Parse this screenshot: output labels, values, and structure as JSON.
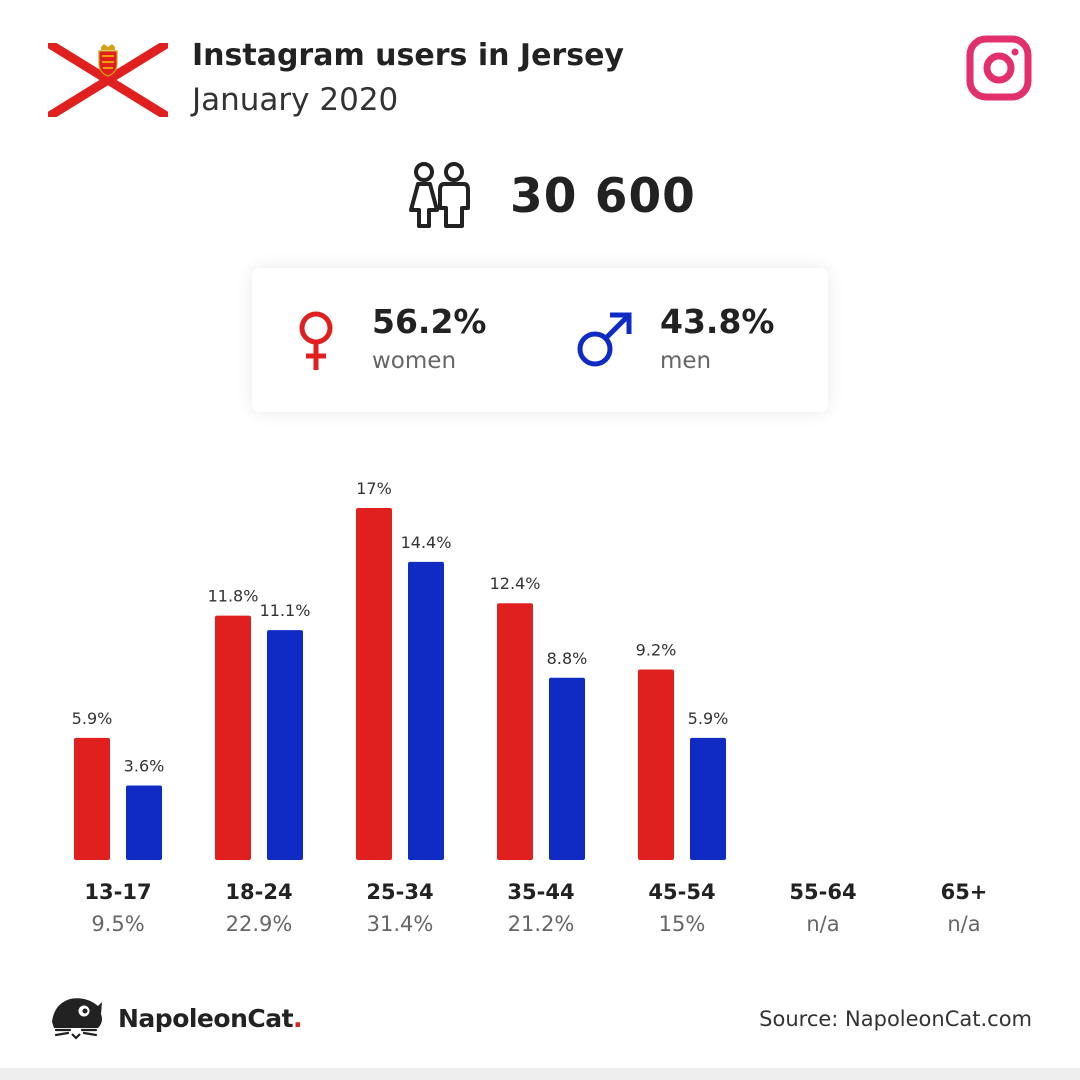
{
  "header": {
    "title": "Instagram users in Jersey",
    "subtitle": "January 2020"
  },
  "total": {
    "value": "30 600"
  },
  "gender": {
    "women": {
      "pct": "56.2%",
      "label": "women"
    },
    "men": {
      "pct": "43.8%",
      "label": "men"
    }
  },
  "colors": {
    "women": "#e0201f",
    "men": "#0f2bc4",
    "instagram": "#e1306c"
  },
  "icons": {
    "flag": "jersey-flag-icon",
    "platform": "instagram-icon",
    "people": "people-icon",
    "female": "female-symbol-icon",
    "male": "male-symbol-icon",
    "logo": "napoleoncat-logo-icon"
  },
  "chart_data": {
    "type": "bar",
    "categories": [
      "13-17",
      "18-24",
      "25-34",
      "35-44",
      "45-54",
      "55-64",
      "65+"
    ],
    "shares": [
      "9.5%",
      "22.9%",
      "31.4%",
      "21.2%",
      "15%",
      "n/a",
      "n/a"
    ],
    "series": [
      {
        "key": "women",
        "values": [
          5.9,
          11.8,
          17,
          12.4,
          9.2,
          null,
          null
        ],
        "labels": [
          "5.9%",
          "11.8%",
          "17%",
          "12.4%",
          "9.2%",
          null,
          null
        ]
      },
      {
        "key": "men",
        "values": [
          3.6,
          11.1,
          14.4,
          8.8,
          5.9,
          null,
          null
        ],
        "labels": [
          "3.6%",
          "11.1%",
          "14.4%",
          "8.8%",
          "5.9%",
          null,
          null
        ]
      }
    ],
    "ylim": [
      0,
      17
    ]
  },
  "footer": {
    "brand": "NapoleonCat",
    "brand_dot": ".",
    "source": "Source: NapoleonCat.com"
  }
}
